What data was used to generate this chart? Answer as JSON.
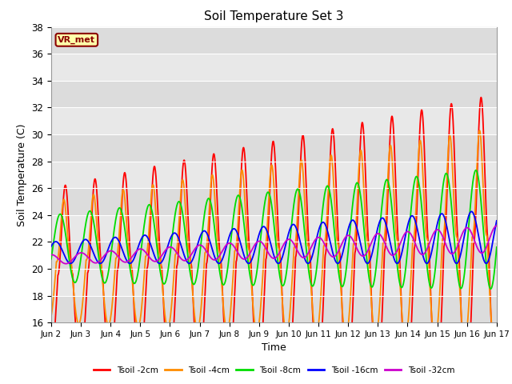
{
  "title": "Soil Temperature Set 3",
  "xlabel": "Time",
  "ylabel": "Soil Temperature (C)",
  "ylim": [
    16,
    38
  ],
  "xlim": [
    0,
    15
  ],
  "xtick_labels": [
    "Jun 2",
    "Jun 3",
    "Jun 4",
    "Jun 5",
    "Jun 6",
    "Jun 7",
    "Jun 8",
    "Jun 9",
    "Jun 10",
    "Jun 11",
    "Jun 12",
    "Jun 13",
    "Jun 14",
    "Jun 15",
    "Jun 16",
    "Jun 17"
  ],
  "ytick_values": [
    16,
    18,
    20,
    22,
    24,
    26,
    28,
    30,
    32,
    34,
    36,
    38
  ],
  "colors": {
    "tsoil_2cm": "#FF0000",
    "tsoil_4cm": "#FF8C00",
    "tsoil_8cm": "#00DD00",
    "tsoil_16cm": "#0000FF",
    "tsoil_32cm": "#CC00CC"
  },
  "legend_labels": [
    "Tsoil -2cm",
    "Tsoil -4cm",
    "Tsoil -8cm",
    "Tsoil -16cm",
    "Tsoil -32cm"
  ],
  "plot_bg_color": "#E8E8E8",
  "stripe_color_light": "#EBEBEB",
  "stripe_color_dark": "#D8D8D8",
  "vr_met_label": "VR_met",
  "vr_met_bg": "#FFFFAA",
  "vr_met_border": "#8B0000",
  "grid_color": "#CCCCCC"
}
